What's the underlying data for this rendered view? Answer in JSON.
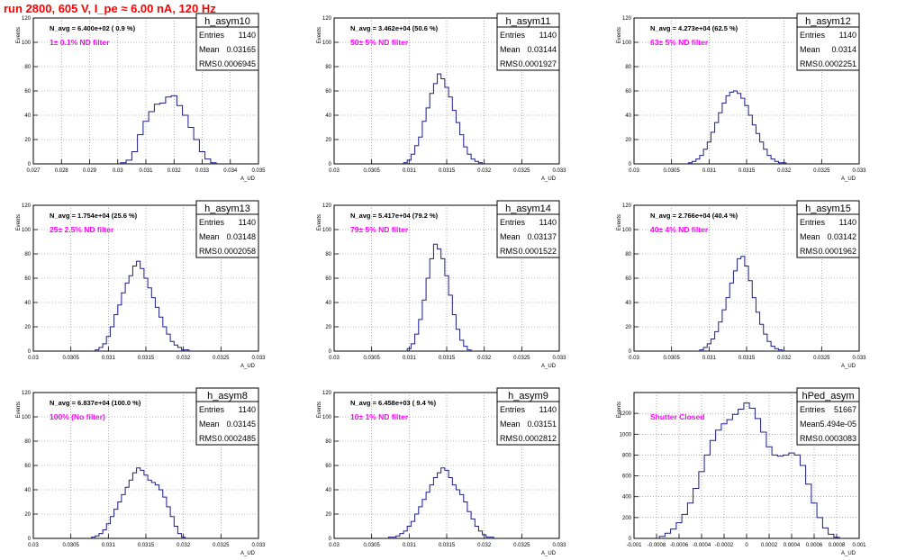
{
  "page_title": "run 2800,   605 V, I_pe ≈ 6.00 nA, 120 Hz",
  "colors": {
    "hist": "#1c1c8c",
    "filter_label": "#ff00ff",
    "title": "#ff0000",
    "grid": "#777777"
  },
  "stats_labels": {
    "entries": "Entries",
    "mean": "Mean",
    "rms": "RMS"
  },
  "chart_data": [
    {
      "type": "histogram",
      "name": "h_asym10",
      "nav": "N_avg = 6.400e+02 ( 0.9 %)",
      "filter": "1± 0.1% ND filter",
      "entries": "1140",
      "mean": "0.03165",
      "rms": "0.0006945",
      "ylabel": "Events",
      "xlabel": "A_UD",
      "xlim": [
        0.027,
        0.035
      ],
      "ylim": [
        0,
        120
      ],
      "xticks": [
        "0.027",
        "0.028",
        "0.029",
        "0.03",
        "0.031",
        "0.032",
        "0.033",
        "0.034",
        "0.035"
      ],
      "yticks": [
        "0",
        "20",
        "40",
        "60",
        "80",
        "100",
        "120"
      ],
      "grid": true,
      "x": [
        0.0302,
        0.0304,
        0.0306,
        0.0308,
        0.031,
        0.0312,
        0.0314,
        0.0316,
        0.0318,
        0.032,
        0.0322,
        0.0324,
        0.0326,
        0.0328,
        0.033,
        0.0332,
        0.0334
      ],
      "y": [
        1,
        3,
        10,
        24,
        35,
        43,
        49,
        50,
        55,
        56,
        48,
        40,
        30,
        20,
        10,
        4,
        1
      ]
    },
    {
      "type": "histogram",
      "name": "h_asym11",
      "nav": "N_avg = 3.462e+04 (50.6 %)",
      "filter": "50± 5% ND filter",
      "entries": "1140",
      "mean": "0.03144",
      "rms": "0.0001927",
      "ylabel": "Events",
      "xlabel": "A_UD",
      "xlim": [
        0.03,
        0.033
      ],
      "ylim": [
        0,
        120
      ],
      "xticks": [
        "0.03",
        "0.0305",
        "0.031",
        "0.0315",
        "0.032",
        "0.0325",
        "0.033"
      ],
      "yticks": [
        "0",
        "20",
        "40",
        "60",
        "80",
        "100",
        "120"
      ],
      "grid": true,
      "x": [
        0.03095,
        0.031,
        0.03105,
        0.0311,
        0.03115,
        0.0312,
        0.03125,
        0.0313,
        0.03135,
        0.0314,
        0.03145,
        0.0315,
        0.03155,
        0.0316,
        0.03165,
        0.0317,
        0.03175,
        0.0318,
        0.03185,
        0.0319,
        0.03195
      ],
      "y": [
        1,
        3,
        8,
        15,
        22,
        35,
        46,
        58,
        66,
        74,
        70,
        63,
        55,
        44,
        34,
        24,
        14,
        8,
        4,
        2,
        1
      ]
    },
    {
      "type": "histogram",
      "name": "h_asym12",
      "nav": "N_avg = 4.273e+04 (62.5 %)",
      "filter": "63± 5% ND filter",
      "entries": "1140",
      "mean": "0.0314",
      "rms": "0.0002251",
      "ylabel": "Events",
      "xlabel": "A_UD",
      "xlim": [
        0.03,
        0.033
      ],
      "ylim": [
        0,
        120
      ],
      "xticks": [
        "0.03",
        "0.0305",
        "0.031",
        "0.0315",
        "0.032",
        "0.0325",
        "0.033"
      ],
      "yticks": [
        "0",
        "20",
        "40",
        "60",
        "80",
        "100",
        "120"
      ],
      "grid": true,
      "x": [
        0.03075,
        0.0308,
        0.03085,
        0.0309,
        0.03095,
        0.031,
        0.03105,
        0.0311,
        0.03115,
        0.0312,
        0.03125,
        0.0313,
        0.03135,
        0.0314,
        0.03145,
        0.0315,
        0.03155,
        0.0316,
        0.03165,
        0.0317,
        0.03175,
        0.0318,
        0.03185,
        0.0319,
        0.03195,
        0.032
      ],
      "y": [
        1,
        2,
        4,
        7,
        12,
        18,
        26,
        34,
        42,
        50,
        56,
        59,
        60,
        58,
        54,
        48,
        40,
        32,
        25,
        18,
        12,
        7,
        4,
        2,
        1,
        1
      ]
    },
    {
      "type": "histogram",
      "name": "h_asym13",
      "nav": "N_avg = 1.754e+04 (25.6 %)",
      "filter": "25± 2.5% ND filter",
      "entries": "1140",
      "mean": "0.03148",
      "rms": "0.0002058",
      "ylabel": "Events",
      "xlabel": "A_UD",
      "xlim": [
        0.03,
        0.033
      ],
      "ylim": [
        0,
        120
      ],
      "xticks": [
        "0.03",
        "0.0305",
        "0.031",
        "0.0315",
        "0.032",
        "0.0325",
        "0.033"
      ],
      "yticks": [
        "0",
        "20",
        "40",
        "60",
        "80",
        "100",
        "120"
      ],
      "grid": true,
      "x": [
        0.03085,
        0.0309,
        0.03095,
        0.031,
        0.03105,
        0.0311,
        0.03115,
        0.0312,
        0.03125,
        0.0313,
        0.03135,
        0.0314,
        0.03145,
        0.0315,
        0.03155,
        0.0316,
        0.03165,
        0.0317,
        0.03175,
        0.0318,
        0.03185,
        0.0319,
        0.03195,
        0.032,
        0.03205
      ],
      "y": [
        1,
        3,
        6,
        12,
        20,
        30,
        38,
        48,
        56,
        62,
        70,
        74,
        68,
        60,
        52,
        44,
        36,
        28,
        20,
        14,
        8,
        5,
        3,
        1,
        1
      ]
    },
    {
      "type": "histogram",
      "name": "h_asym14",
      "nav": "N_avg = 5.417e+04 (79.2 %)",
      "filter": "79± 5% ND filter",
      "entries": "1140",
      "mean": "0.03137",
      "rms": "0.0001522",
      "ylabel": "Events",
      "xlabel": "A_UD",
      "xlim": [
        0.03,
        0.033
      ],
      "ylim": [
        0,
        120
      ],
      "xticks": [
        "0.03",
        "0.0305",
        "0.031",
        "0.0315",
        "0.032",
        "0.0325",
        "0.033"
      ],
      "yticks": [
        "0",
        "20",
        "40",
        "60",
        "80",
        "100",
        "120"
      ],
      "grid": true,
      "x": [
        0.031,
        0.03105,
        0.0311,
        0.03115,
        0.0312,
        0.03125,
        0.0313,
        0.03135,
        0.0314,
        0.03145,
        0.0315,
        0.03155,
        0.0316,
        0.03165,
        0.0317,
        0.03175,
        0.0318
      ],
      "y": [
        2,
        6,
        14,
        26,
        42,
        60,
        76,
        88,
        84,
        76,
        62,
        46,
        30,
        18,
        9,
        4,
        1
      ]
    },
    {
      "type": "histogram",
      "name": "h_asym15",
      "nav": "N_avg = 2.766e+04 (40.4 %)",
      "filter": "40± 4% ND filter",
      "entries": "1140",
      "mean": "0.03142",
      "rms": "0.0001962",
      "ylabel": "Events",
      "xlabel": "A_UD",
      "xlim": [
        0.03,
        0.033
      ],
      "ylim": [
        0,
        120
      ],
      "xticks": [
        "0.03",
        "0.0305",
        "0.031",
        "0.0315",
        "0.032",
        "0.0325",
        "0.033"
      ],
      "yticks": [
        "0",
        "20",
        "40",
        "60",
        "80",
        "100",
        "120"
      ],
      "grid": true,
      "x": [
        0.0309,
        0.03095,
        0.031,
        0.03105,
        0.0311,
        0.03115,
        0.0312,
        0.03125,
        0.0313,
        0.03135,
        0.0314,
        0.03145,
        0.0315,
        0.03155,
        0.0316,
        0.03165,
        0.0317,
        0.03175,
        0.0318,
        0.03185,
        0.0319,
        0.03195
      ],
      "y": [
        1,
        3,
        6,
        10,
        16,
        24,
        34,
        44,
        56,
        66,
        76,
        78,
        70,
        58,
        44,
        32,
        22,
        14,
        8,
        4,
        2,
        1
      ]
    },
    {
      "type": "histogram",
      "name": "h_asym8",
      "nav": "N_avg = 6.837e+04 (100.0 %)",
      "filter": "100% (No filter)",
      "entries": "1140",
      "mean": "0.03145",
      "rms": "0.0002485",
      "ylabel": "Events",
      "xlabel": "A_UD",
      "xlim": [
        0.03,
        0.033
      ],
      "ylim": [
        0,
        120
      ],
      "xticks": [
        "0.03",
        "0.0305",
        "0.031",
        "0.0315",
        "0.032",
        "0.0325",
        "0.033"
      ],
      "yticks": [
        "0",
        "20",
        "40",
        "60",
        "80",
        "100",
        "120"
      ],
      "grid": true,
      "x": [
        0.0308,
        0.03085,
        0.0309,
        0.03095,
        0.031,
        0.03105,
        0.0311,
        0.03115,
        0.0312,
        0.03125,
        0.0313,
        0.03135,
        0.0314,
        0.03145,
        0.0315,
        0.03155,
        0.0316,
        0.03165,
        0.0317,
        0.03175,
        0.0318,
        0.03185,
        0.0319,
        0.03195,
        0.032
      ],
      "y": [
        1,
        2,
        4,
        7,
        12,
        18,
        24,
        30,
        36,
        42,
        48,
        54,
        58,
        56,
        52,
        48,
        46,
        44,
        40,
        34,
        26,
        18,
        10,
        4,
        1
      ]
    },
    {
      "type": "histogram",
      "name": "h_asym9",
      "nav": "N_avg = 6.458e+03 ( 9.4 %)",
      "filter": "10± 1% ND filter",
      "entries": "1140",
      "mean": "0.03151",
      "rms": "0.0002812",
      "ylabel": "Events",
      "xlabel": "A_UD",
      "xlim": [
        0.03,
        0.033
      ],
      "ylim": [
        0,
        120
      ],
      "xticks": [
        "0.03",
        "0.0305",
        "0.031",
        "0.0315",
        "0.032",
        "0.0325",
        "0.033"
      ],
      "yticks": [
        "0",
        "20",
        "40",
        "60",
        "80",
        "100",
        "120"
      ],
      "grid": true,
      "x": [
        0.03075,
        0.0308,
        0.03085,
        0.0309,
        0.03095,
        0.031,
        0.03105,
        0.0311,
        0.03115,
        0.0312,
        0.03125,
        0.0313,
        0.03135,
        0.0314,
        0.03145,
        0.0315,
        0.03155,
        0.0316,
        0.03165,
        0.0317,
        0.03175,
        0.0318,
        0.03185,
        0.0319,
        0.03195,
        0.032,
        0.03205,
        0.0321
      ],
      "y": [
        1,
        1,
        2,
        4,
        6,
        10,
        14,
        20,
        26,
        32,
        38,
        44,
        50,
        54,
        58,
        56,
        50,
        44,
        40,
        36,
        30,
        22,
        16,
        10,
        6,
        3,
        1,
        1
      ]
    },
    {
      "type": "histogram",
      "name": "hPed_asym",
      "nav": "",
      "filter": "Shutter Closed",
      "entries": "51667",
      "mean": "5.494e-05",
      "rms": "0.0003083",
      "ylabel": "Events",
      "xlabel": "A_UD",
      "xlim": [
        -0.001,
        0.001
      ],
      "ylim": [
        0,
        1400
      ],
      "xticks": [
        "-0.001",
        "-0.0008",
        "-0.0006",
        "-0.0004",
        "-0.0002",
        "0",
        "0.0002",
        "0.0004",
        "0.0006",
        "0.0008",
        "0.001"
      ],
      "yticks": [
        "0",
        "200",
        "400",
        "600",
        "800",
        "1000",
        "1200"
      ],
      "grid": true,
      "x": [
        -0.00075,
        -0.0007,
        -0.00065,
        -0.0006,
        -0.00055,
        -0.0005,
        -0.00045,
        -0.0004,
        -0.00035,
        -0.0003,
        -0.00025,
        -0.0002,
        -0.00015,
        -0.0001,
        -5e-05,
        0,
        5e-05,
        0.0001,
        0.00015,
        0.0002,
        0.00025,
        0.0003,
        0.00035,
        0.0004,
        0.00045,
        0.0005,
        0.00055,
        0.0006,
        0.00065,
        0.0007,
        0.00075,
        0.0008
      ],
      "y": [
        20,
        50,
        90,
        150,
        230,
        340,
        480,
        640,
        800,
        940,
        1040,
        1100,
        1140,
        1190,
        1240,
        1300,
        1250,
        1150,
        1020,
        880,
        800,
        790,
        800,
        820,
        800,
        700,
        520,
        340,
        200,
        100,
        40,
        10
      ]
    }
  ]
}
